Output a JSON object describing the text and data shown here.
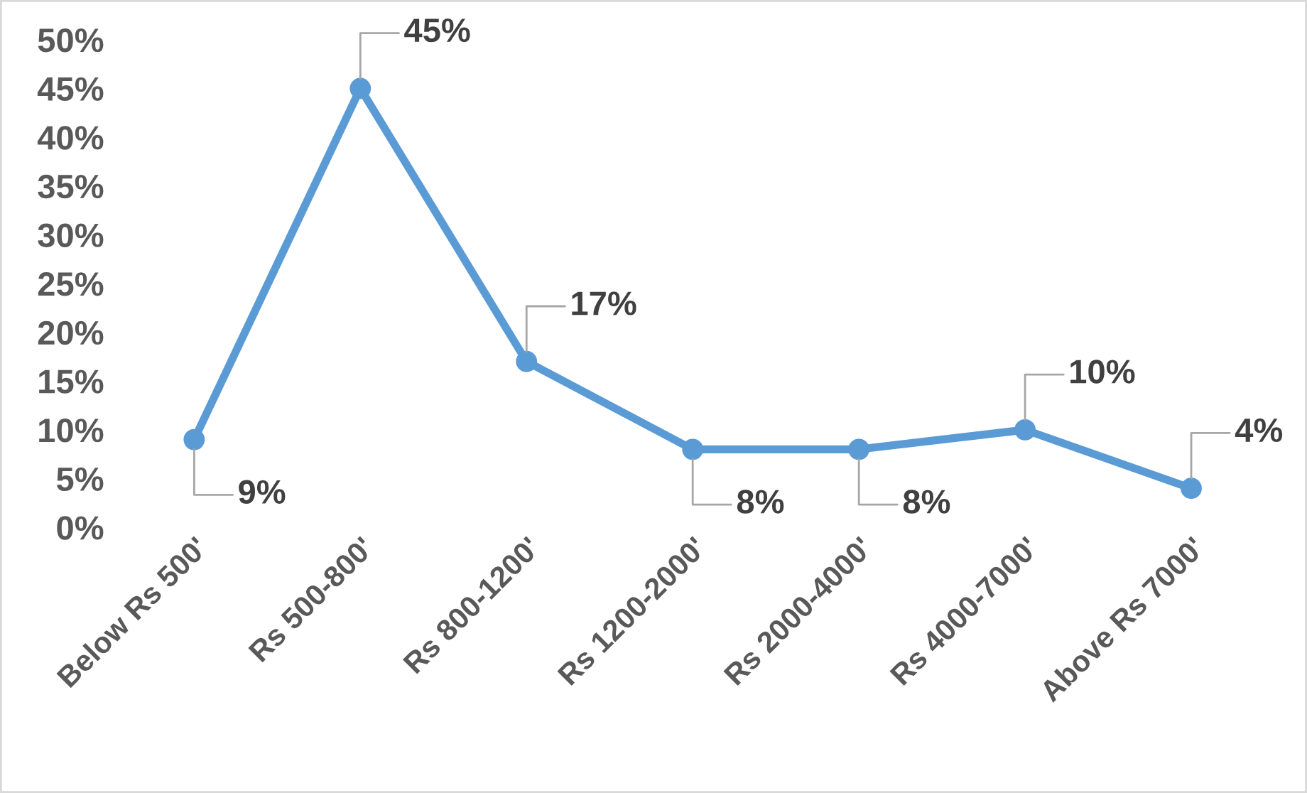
{
  "chart_data": {
    "type": "line",
    "categories": [
      "Below Rs 500'",
      "Rs 500-800'",
      "Rs 800-1200'",
      "Rs 1200-2000'",
      "Rs 2000-4000'",
      "Rs 4000-7000'",
      "Above Rs 7000'"
    ],
    "series": [
      {
        "color": "#5b9bd5",
        "values": [
          9,
          45,
          17,
          8,
          8,
          10,
          4
        ],
        "value_labels": [
          "9%",
          "45%",
          "17%",
          "8%",
          "8%",
          "10%",
          "4%"
        ]
      }
    ],
    "ylim": [
      0,
      50
    ],
    "yticks": [
      {
        "value": 0,
        "label": "0%"
      },
      {
        "value": 5,
        "label": "5%"
      },
      {
        "value": 10,
        "label": "10%"
      },
      {
        "value": 15,
        "label": "15%"
      },
      {
        "value": 20,
        "label": "20%"
      },
      {
        "value": 25,
        "label": "25%"
      },
      {
        "value": 30,
        "label": "30%"
      },
      {
        "value": 35,
        "label": "35%"
      },
      {
        "value": 40,
        "label": "40%"
      },
      {
        "value": 45,
        "label": "45%"
      },
      {
        "value": 50,
        "label": "50%"
      }
    ],
    "marker": "circle",
    "line_style": "solid",
    "grid": false,
    "legend": false
  }
}
